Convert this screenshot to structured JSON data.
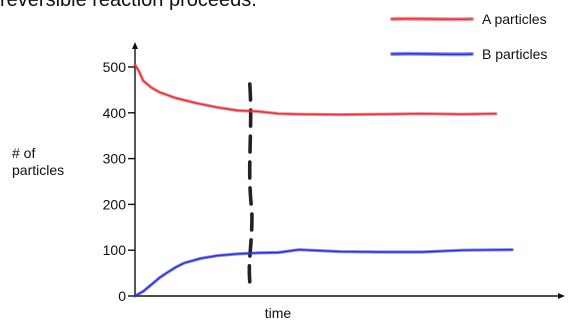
{
  "header": {
    "caption": "reversible reaction proceeds."
  },
  "chart_data": {
    "type": "line",
    "xlabel": "time",
    "ylabel": "# of\nparticles",
    "ylim": [
      0,
      500
    ],
    "yticks": [
      0,
      100,
      200,
      300,
      400,
      500
    ],
    "grid": false,
    "legend_position": "top-right",
    "equilibrium_marker": {
      "x": 28
    },
    "series": [
      {
        "name": "A particles",
        "color": "#e8303c",
        "x": [
          0,
          1,
          2,
          4,
          6,
          10,
          15,
          20,
          25,
          30,
          35,
          40,
          50,
          60,
          70,
          80,
          88
        ],
        "values": [
          505,
          490,
          470,
          455,
          445,
          432,
          421,
          412,
          405,
          403,
          398,
          397,
          396,
          397,
          398,
          397,
          398
        ]
      },
      {
        "name": "B particles",
        "color": "#2a2fe0",
        "x": [
          0,
          2,
          4,
          6,
          8,
          10,
          12,
          16,
          20,
          25,
          30,
          35,
          40,
          50,
          60,
          70,
          80,
          92
        ],
        "values": [
          0,
          10,
          25,
          40,
          52,
          63,
          72,
          82,
          88,
          92,
          94,
          95,
          101,
          97,
          96,
          96,
          100,
          101
        ]
      }
    ]
  }
}
